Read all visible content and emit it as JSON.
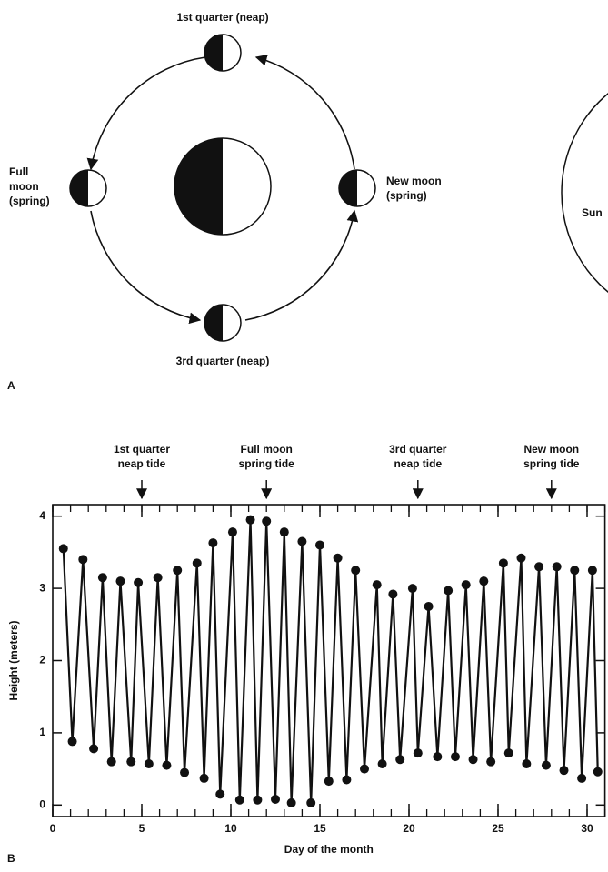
{
  "diagram": {
    "panel_label": "A",
    "first_quarter": [
      "1st quarter (neap)"
    ],
    "full_moon": [
      "Full",
      "moon",
      "(spring)"
    ],
    "new_moon": [
      "New moon",
      "(spring)"
    ],
    "third_quarter": [
      "3rd quarter (neap)"
    ],
    "sun": "Sun"
  },
  "panel_label_b": "B",
  "chart_data": {
    "type": "line",
    "x_label": "Day of the month",
    "y_label": "Height (meters)",
    "xlim": [
      0,
      31
    ],
    "ylim": [
      -0.16,
      4.16
    ],
    "xticks": [
      0,
      5,
      10,
      15,
      20,
      25,
      30
    ],
    "yticks": [
      0,
      1,
      2,
      3,
      4
    ],
    "x": [
      0.6,
      1.1,
      1.7,
      2.3,
      2.8,
      3.3,
      3.8,
      4.4,
      4.8,
      5.4,
      5.9,
      6.4,
      7.0,
      7.4,
      8.1,
      8.5,
      9.0,
      9.4,
      10.1,
      10.5,
      11.1,
      11.5,
      12.0,
      12.5,
      13.0,
      13.4,
      14.0,
      14.5,
      15.0,
      15.5,
      16.0,
      16.5,
      17.0,
      17.5,
      18.2,
      18.5,
      19.1,
      19.5,
      20.2,
      20.5,
      21.1,
      21.6,
      22.2,
      22.6,
      23.2,
      23.6,
      24.2,
      24.6,
      25.3,
      25.6,
      26.3,
      26.6,
      27.3,
      27.7,
      28.3,
      28.7,
      29.3,
      29.7,
      30.3,
      30.6
    ],
    "series": [
      {
        "color": "#111111",
        "values": [
          3.55,
          0.88,
          3.4,
          0.78,
          3.15,
          0.6,
          3.1,
          0.6,
          3.08,
          0.57,
          3.15,
          0.55,
          3.25,
          0.45,
          3.35,
          0.37,
          3.63,
          0.15,
          3.78,
          0.07,
          3.95,
          0.07,
          3.93,
          0.08,
          3.78,
          0.03,
          3.65,
          0.03,
          3.6,
          0.33,
          3.42,
          0.35,
          3.25,
          0.5,
          3.05,
          0.57,
          2.92,
          0.63,
          3.0,
          0.72,
          2.75,
          0.67,
          2.97,
          0.67,
          3.05,
          0.63,
          3.1,
          0.6,
          3.35,
          0.72,
          3.42,
          0.57,
          3.3,
          0.55,
          3.3,
          0.48,
          3.25,
          0.37,
          3.25,
          0.46
        ]
      }
    ],
    "annotations": [
      {
        "x": 5,
        "lines": [
          "1st quarter",
          "neap tide"
        ]
      },
      {
        "x": 12,
        "lines": [
          "Full moon",
          "spring tide"
        ]
      },
      {
        "x": 20.5,
        "lines": [
          "3rd quarter",
          "neap tide"
        ]
      },
      {
        "x": 28,
        "lines": [
          "New moon",
          "spring tide"
        ]
      }
    ]
  }
}
